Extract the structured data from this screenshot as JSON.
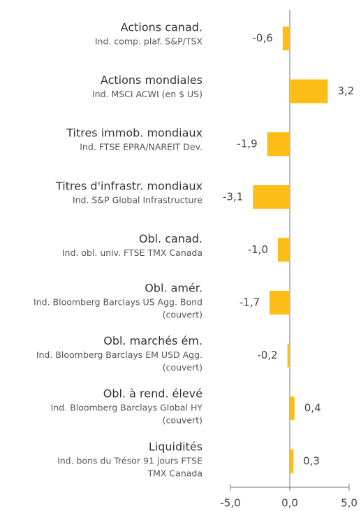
{
  "chart_data": {
    "type": "bar",
    "orientation": "horizontal",
    "categories": [
      "Actions canad.",
      "Actions mondiales",
      "Titres immob. mondiaux",
      "Titres d'infrastr. mondiaux",
      "Obl. canad.",
      "Obl. amér.",
      "Obl. marchés ém.",
      "Obl. à rend. élevé",
      "Liquidités"
    ],
    "sublabels": [
      [
        "Ind. comp. plaf. S&P/TSX"
      ],
      [
        "Ind. MSCI ACWI (en $ US)"
      ],
      [
        "Ind. FTSE EPRA/NAREIT Dev."
      ],
      [
        "Ind. S&P Global Infrastructure"
      ],
      [
        "Ind. obl. univ. FTSE TMX Canada"
      ],
      [
        "Ind. Bloomberg Barclays US Agg. Bond",
        "(couvert)"
      ],
      [
        "Ind. Bloomberg Barclays EM USD Agg.",
        "(couvert)"
      ],
      [
        "Ind. Bloomberg Barclays Global HY",
        "(couvert)"
      ],
      [
        "Ind. bons du Trésor 91 jours FTSE",
        "TMX Canada"
      ]
    ],
    "values": [
      -0.6,
      3.2,
      -1.9,
      -3.1,
      -1.0,
      -1.7,
      -0.2,
      0.4,
      0.3
    ],
    "value_labels": [
      "-0,6",
      "3,2",
      "-1,9",
      "-3,1",
      "-1,0",
      "-1,7",
      "-0,2",
      "0,4",
      "0,3"
    ],
    "color": "#fbbd16",
    "xlim": [
      -5,
      5
    ],
    "xticks": [
      {
        "value": -5,
        "label": "-5,0"
      },
      {
        "value": 0,
        "label": "0,0"
      },
      {
        "value": 5,
        "label": "5,0"
      }
    ]
  }
}
